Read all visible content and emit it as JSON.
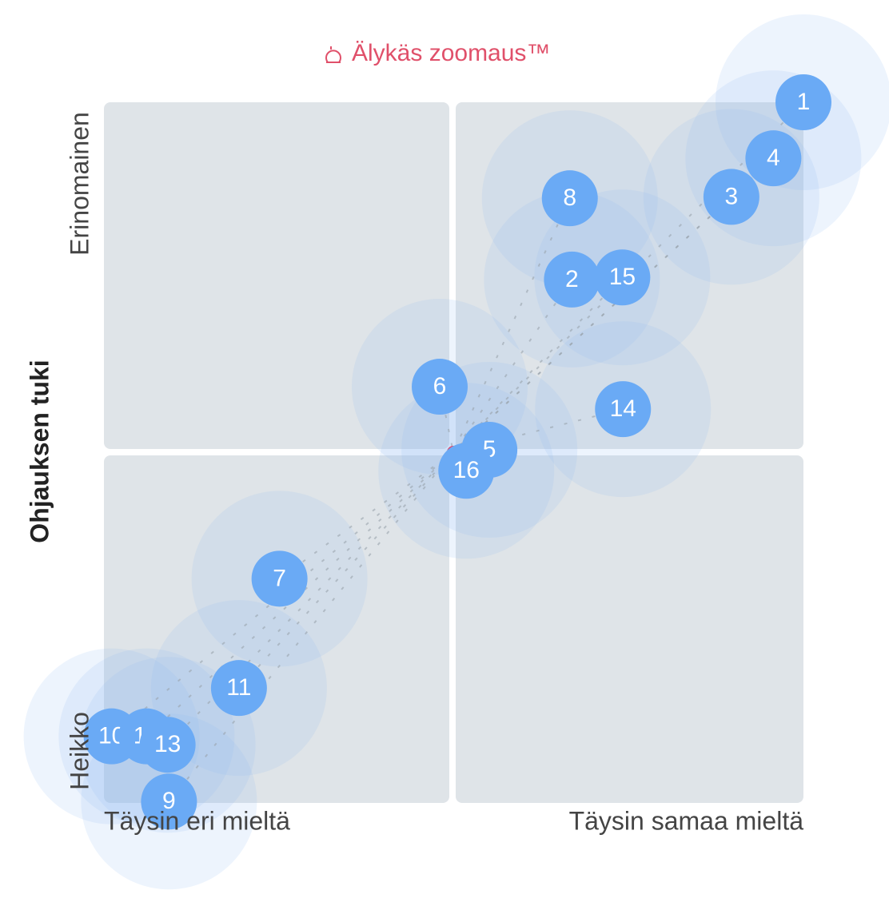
{
  "chart_data": {
    "type": "scatter",
    "title": "Älykäs zoomaus™",
    "y_label": "Ohjauksen tuki",
    "y_top_label": "Erinomainen",
    "y_bottom_label": "Heikko",
    "x_left_label": "Täysin eri mieltä",
    "x_right_label": "Täysin samaa mieltä",
    "xlim": [
      0,
      100
    ],
    "ylim": [
      0,
      100
    ],
    "color": "#6aaaf5",
    "points": [
      {
        "label": "1",
        "x": 100,
        "y": 100
      },
      {
        "label": "4",
        "x": 95.7,
        "y": 92.0
      },
      {
        "label": "3",
        "x": 89.7,
        "y": 86.5
      },
      {
        "label": "8",
        "x": 66.6,
        "y": 86.3
      },
      {
        "label": "2",
        "x": 66.9,
        "y": 74.7
      },
      {
        "label": "15",
        "x": 74.1,
        "y": 75.0
      },
      {
        "label": "6",
        "x": 48.0,
        "y": 59.4
      },
      {
        "label": "14",
        "x": 74.2,
        "y": 56.2
      },
      {
        "label": "5",
        "x": 55.1,
        "y": 50.4
      },
      {
        "label": "16",
        "x": 51.8,
        "y": 47.4
      },
      {
        "label": "7",
        "x": 25.1,
        "y": 32.0
      },
      {
        "label": "11",
        "x": 19.3,
        "y": 16.4
      },
      {
        "label": "10",
        "x": 1.1,
        "y": 9.5
      },
      {
        "label": "12",
        "x": 6.1,
        "y": 9.5
      },
      {
        "label": "13",
        "x": 9.1,
        "y": 8.3
      },
      {
        "label": "9",
        "x": 9.3,
        "y": 0.2
      }
    ]
  }
}
